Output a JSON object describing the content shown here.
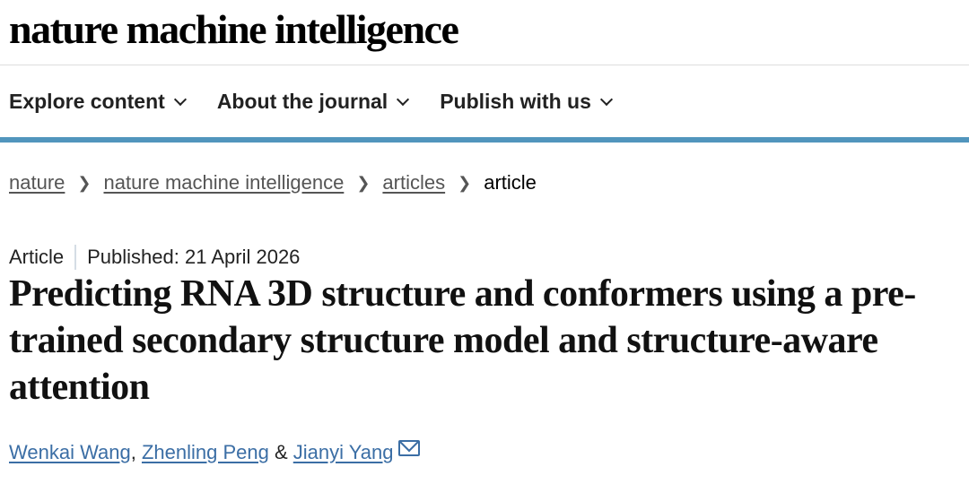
{
  "logo": "nature machine intelligence",
  "nav": [
    "Explore content",
    "About the journal",
    "Publish with us"
  ],
  "breadcrumb": [
    "nature",
    "nature machine intelligence",
    "articles",
    "article"
  ],
  "meta": {
    "type": "Article",
    "published": "Published: 21 April 2026"
  },
  "title": "Predicting RNA 3D structure and conformers using a pre-trained secondary structure model and structure-aware attention",
  "authors": [
    "Wenkai Wang",
    "Zhenling Peng",
    "Jianyi Yang"
  ],
  "colors": {
    "accent_bar": "#5195bd",
    "link": "#3b6ea5"
  }
}
